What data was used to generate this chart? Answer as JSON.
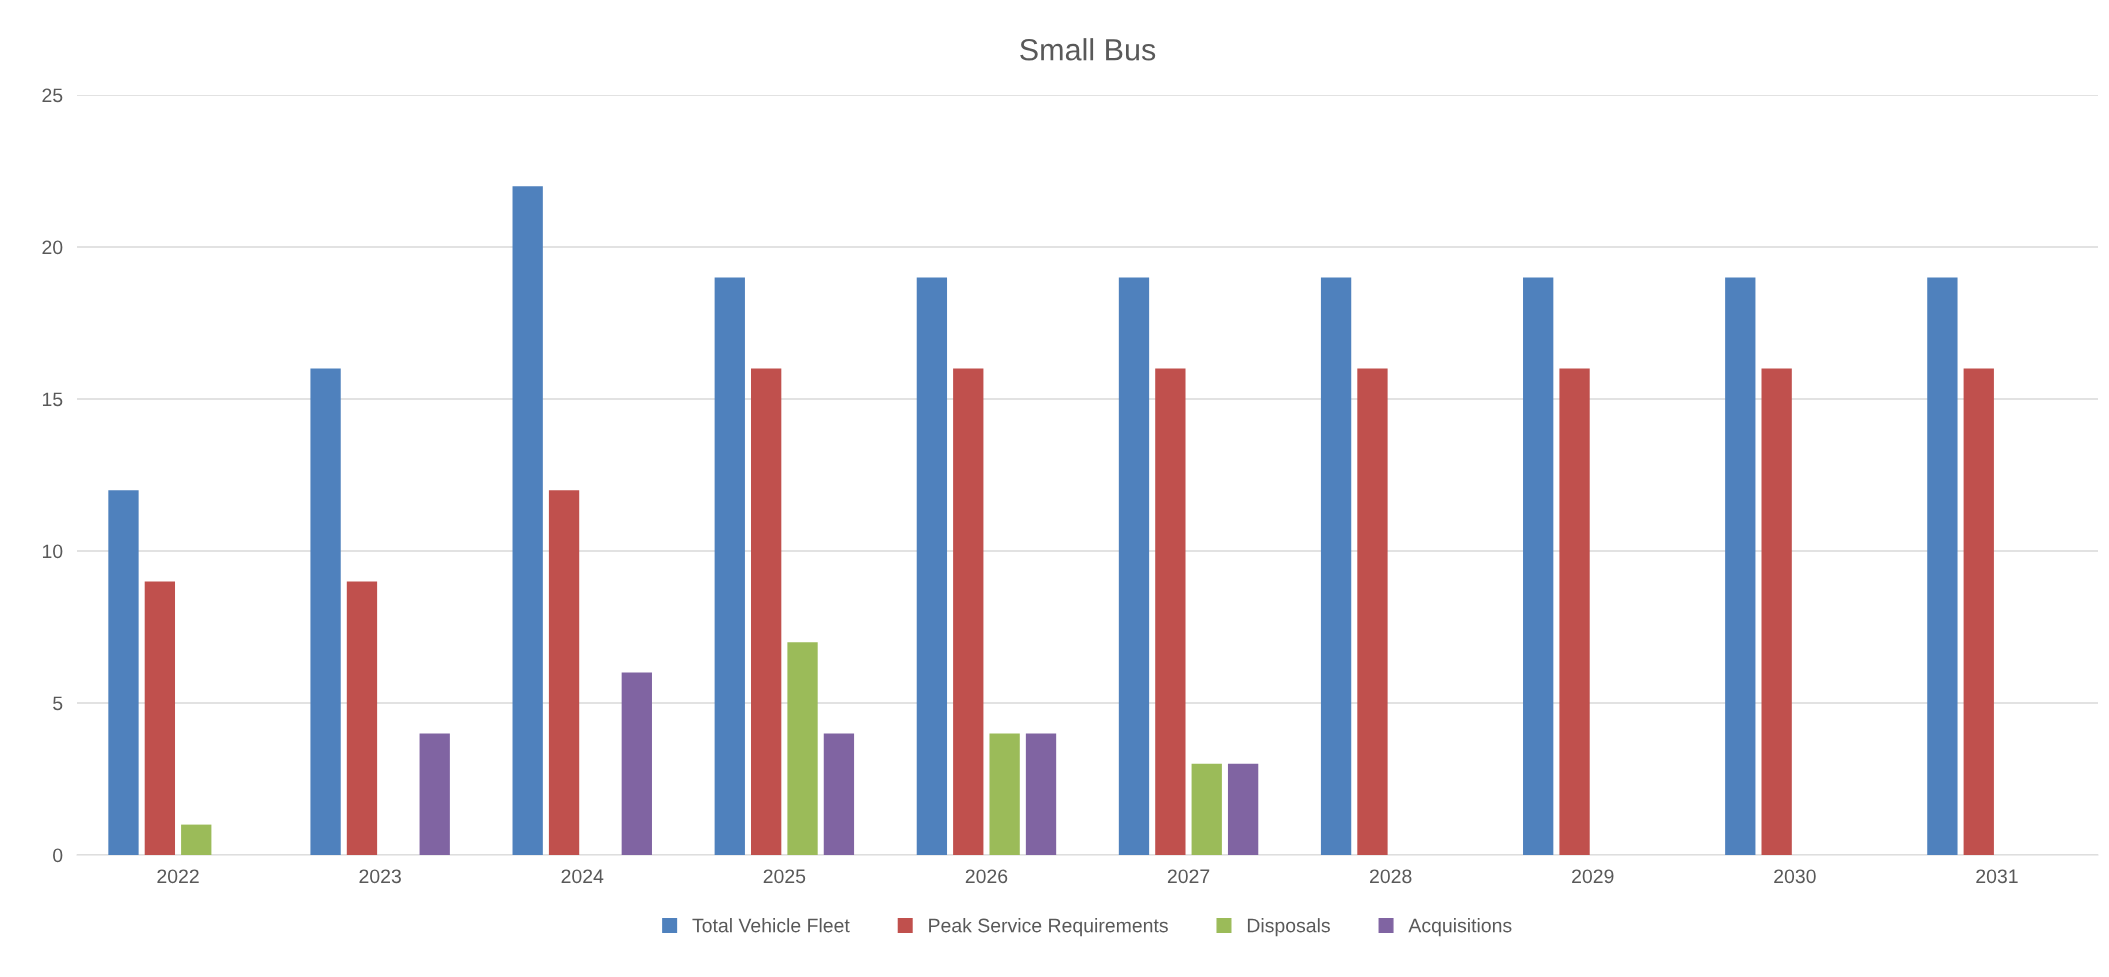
{
  "chart_data": {
    "type": "bar",
    "title": "Small Bus",
    "categories": [
      "2022",
      "2023",
      "2024",
      "2025",
      "2026",
      "2027",
      "2028",
      "2029",
      "2030",
      "2031"
    ],
    "series": [
      {
        "name": "Total Vehicle Fleet",
        "color": "#4f81bd",
        "values": [
          12,
          16,
          22,
          19,
          19,
          19,
          19,
          19,
          19,
          19
        ]
      },
      {
        "name": "Peak Service Requirements",
        "color": "#c0504d",
        "values": [
          9,
          9,
          12,
          16,
          16,
          16,
          16,
          16,
          16,
          16
        ]
      },
      {
        "name": "Disposals",
        "color": "#9bbb59",
        "values": [
          1,
          0,
          0,
          7,
          4,
          3,
          0,
          0,
          0,
          0
        ]
      },
      {
        "name": "Acquisitions",
        "color": "#8064a2",
        "values": [
          0,
          4,
          6,
          4,
          4,
          3,
          0,
          0,
          0,
          0
        ]
      }
    ],
    "ylim": [
      0,
      25
    ],
    "yticks": [
      0,
      5,
      10,
      15,
      20,
      25
    ],
    "grid": "y",
    "legend": "bottom"
  }
}
